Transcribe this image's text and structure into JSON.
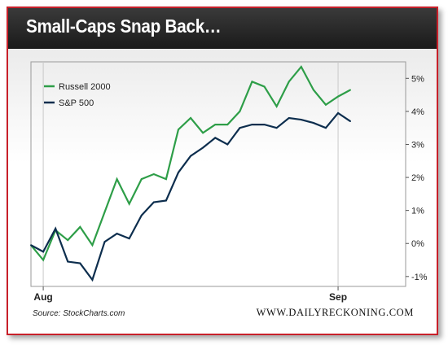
{
  "title": "Small-Caps Snap Back…",
  "source": "Source: StockCharts.com",
  "brand": "WWW.DAILYRECKONING.COM",
  "colors": {
    "accent_border": "#c8202a",
    "russell": "#2e9e48",
    "sp500": "#0d2e4e"
  },
  "chart_data": {
    "type": "line",
    "x_tick_labels": [
      "Aug",
      "Sep"
    ],
    "y_tick_labels": [
      "5%",
      "4%",
      "3%",
      "2%",
      "1%",
      "0%",
      "-1%"
    ],
    "y_ticks": [
      5,
      4,
      3,
      2,
      1,
      0,
      -1
    ],
    "ylim": [
      -1.3,
      5.5
    ],
    "x_tick_positions": [
      1,
      25
    ],
    "xlim": [
      0,
      30.5
    ],
    "legend_position": "top-left",
    "grid": false,
    "series": [
      {
        "name": "Russell 2000",
        "values": [
          -0.05,
          -0.5,
          0.4,
          0.1,
          0.5,
          -0.05,
          0.95,
          1.95,
          1.2,
          1.95,
          2.1,
          1.95,
          3.45,
          3.8,
          3.35,
          3.6,
          3.6,
          4.0,
          4.9,
          4.75,
          4.15,
          4.9,
          5.35,
          4.65,
          4.2,
          4.45,
          4.65
        ]
      },
      {
        "name": "S&P 500",
        "values": [
          -0.05,
          -0.25,
          0.45,
          -0.55,
          -0.6,
          -1.1,
          0.05,
          0.3,
          0.15,
          0.85,
          1.25,
          1.3,
          2.15,
          2.65,
          2.9,
          3.2,
          3.0,
          3.5,
          3.6,
          3.6,
          3.5,
          3.8,
          3.75,
          3.65,
          3.5,
          3.95,
          3.7
        ]
      }
    ],
    "x": [
      0,
      1,
      2,
      3,
      4,
      5,
      6,
      7,
      8,
      9,
      10,
      11,
      12,
      13,
      14,
      15,
      16,
      17,
      18,
      19,
      20,
      21,
      22,
      23,
      24,
      25,
      26
    ]
  }
}
